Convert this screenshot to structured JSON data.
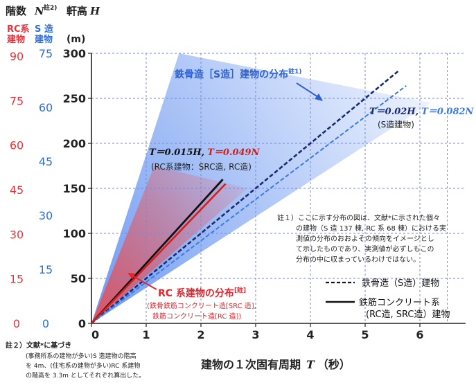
{
  "chart_data": {
    "type": "line",
    "x": {
      "label": "建物の１次固有周期",
      "symbol": "T",
      "unit": "（秒）",
      "ticks": [
        0,
        1,
        2,
        3,
        4,
        5,
        6
      ],
      "range": [
        0,
        6.5
      ]
    },
    "y": {
      "label": "軒高",
      "symbol": "H",
      "unit": "(m)",
      "ticks": [
        0,
        50,
        100,
        150,
        200,
        250,
        300
      ],
      "range": [
        0,
        300
      ]
    },
    "left_axes": {
      "title": "階数",
      "title_symbol": "N",
      "title_note": "註2)",
      "rc": {
        "header_1": "RC系",
        "header_2": "建物",
        "ticks": [
          0,
          15,
          30,
          45,
          60,
          75,
          90
        ],
        "color": "#e8323c"
      },
      "s": {
        "header_1": "S 造",
        "header_2": "建物",
        "ticks": [
          0,
          15,
          30,
          45,
          60,
          75
        ],
        "color": "#2f6fd6"
      }
    },
    "series": [
      {
        "relation": "T = 0.02H",
        "color": "#1a2a6e",
        "style": "dashed",
        "x": [
          0,
          5.6
        ],
        "y": [
          0,
          280
        ]
      },
      {
        "relation": "T = 0.082N",
        "color": "#3a7be0",
        "style": "dashed",
        "x": [
          0,
          5.75
        ],
        "y": [
          0,
          264
        ]
      },
      {
        "relation": "T = 0.015H",
        "color": "#111111",
        "style": "solid",
        "x": [
          0,
          2.4
        ],
        "y": [
          0,
          160
        ]
      },
      {
        "relation": "T = 0.049N",
        "color": "#d11f1f",
        "style": "solid",
        "x": [
          0,
          2.45
        ],
        "y": [
          0,
          155
        ]
      }
    ],
    "bands": [
      {
        "name": "鉄骨造［S造］建物の分布",
        "note": "註1)",
        "color": "#5b8ef0",
        "upper_x": [
          0,
          1.6
        ],
        "upper_y": [
          0,
          300
        ],
        "lower_x": [
          0,
          6.2
        ],
        "lower_y": [
          0,
          245
        ]
      },
      {
        "name": "RC 系建物の分布",
        "note": "[註]",
        "color": "#ef4b4b",
        "upper_x": [
          0,
          1.15
        ],
        "upper_y": [
          0,
          175
        ],
        "lower_x": [
          0,
          2.85
        ],
        "lower_y": [
          0,
          150
        ]
      }
    ],
    "grid": true,
    "legend_position": "bottom-right"
  },
  "labels": {
    "s_dist": "鉄骨造［S造］建物の分布",
    "s_dist_note": "註1)",
    "rc_dist": "RC 系建物の分布",
    "rc_dist_note": "[註]",
    "rc_dist_sub1": "(鉄骨鉄筋コンクリート造[SRC 造],",
    "rc_dist_sub2": "鉄筋コンクリート造[RC 造])",
    "s_formula_a": "T＝0.02H,",
    "s_formula_b": "T＝0.082N",
    "s_formula_sub": "(S造建物)",
    "rc_formula_a": "T＝0.015H,",
    "rc_formula_b": "T＝0.049N",
    "rc_formula_sub": "(RC系建物：SRC造, RC造)"
  },
  "note1": [
    "註１）ここに示す分布の図は、文献*に示された個々",
    "の建物（S 造 137 棟, RC 系 68 棟）における実",
    "測値の分布のおおよその傾向をイメージとし",
    "て示したものであり、実測値が必ずしもこの",
    "分布の中に収まっているわけではない。"
  ],
  "note2": [
    "註２）文献*に基づき",
    "(事務所系の建物が多い)S 造建物の階高",
    "を 4m、(住宅系の建物が多い)RC 系建物",
    "の階高を 3.3m としてそれぞれ算出した。"
  ],
  "legend": [
    {
      "label": "鉄骨造（S造）建物",
      "style": "dashed"
    },
    {
      "label": "鉄筋コンクリート系",
      "label2": "(RC造, SRC造）建物",
      "style": "solid"
    }
  ]
}
